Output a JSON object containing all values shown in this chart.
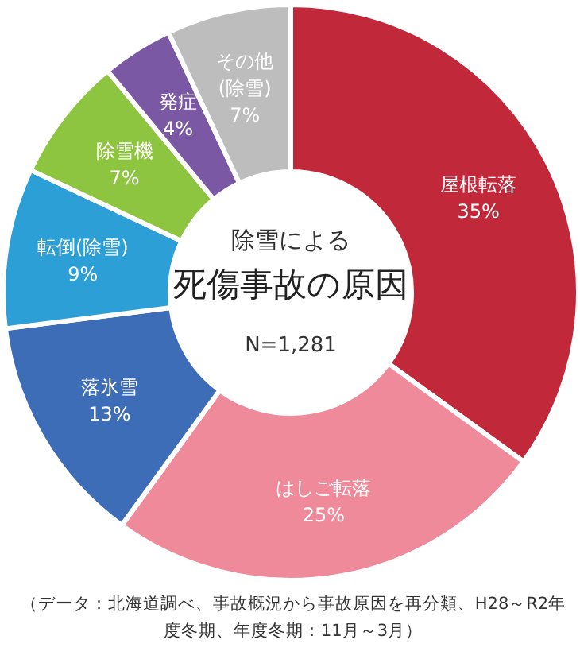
{
  "chart_data": {
    "type": "donut",
    "subtitle": "除雪による",
    "title": "死傷事故の原因",
    "categories": [
      "屋根転落",
      "はしご転落",
      "落氷雪",
      "転倒(除雪)",
      "除雪機",
      "発症",
      "その他(除雪)"
    ],
    "values": [
      35,
      25,
      13,
      9,
      7,
      4,
      7
    ],
    "colors": [
      "#c1283a",
      "#ef8a9a",
      "#3d6db7",
      "#2c9fd6",
      "#8dc540",
      "#7a58a4",
      "#bdbdbd"
    ],
    "value_labels": [
      "35%",
      "25%",
      "13%",
      "9%",
      "7%",
      "4%",
      "7%"
    ],
    "annotations": [
      "N=1,281",
      "（データ：北海道調べ、事故概況から事故原因を再分類、H28～R2年度冬期、年度冬期：11月～3月）"
    ]
  }
}
